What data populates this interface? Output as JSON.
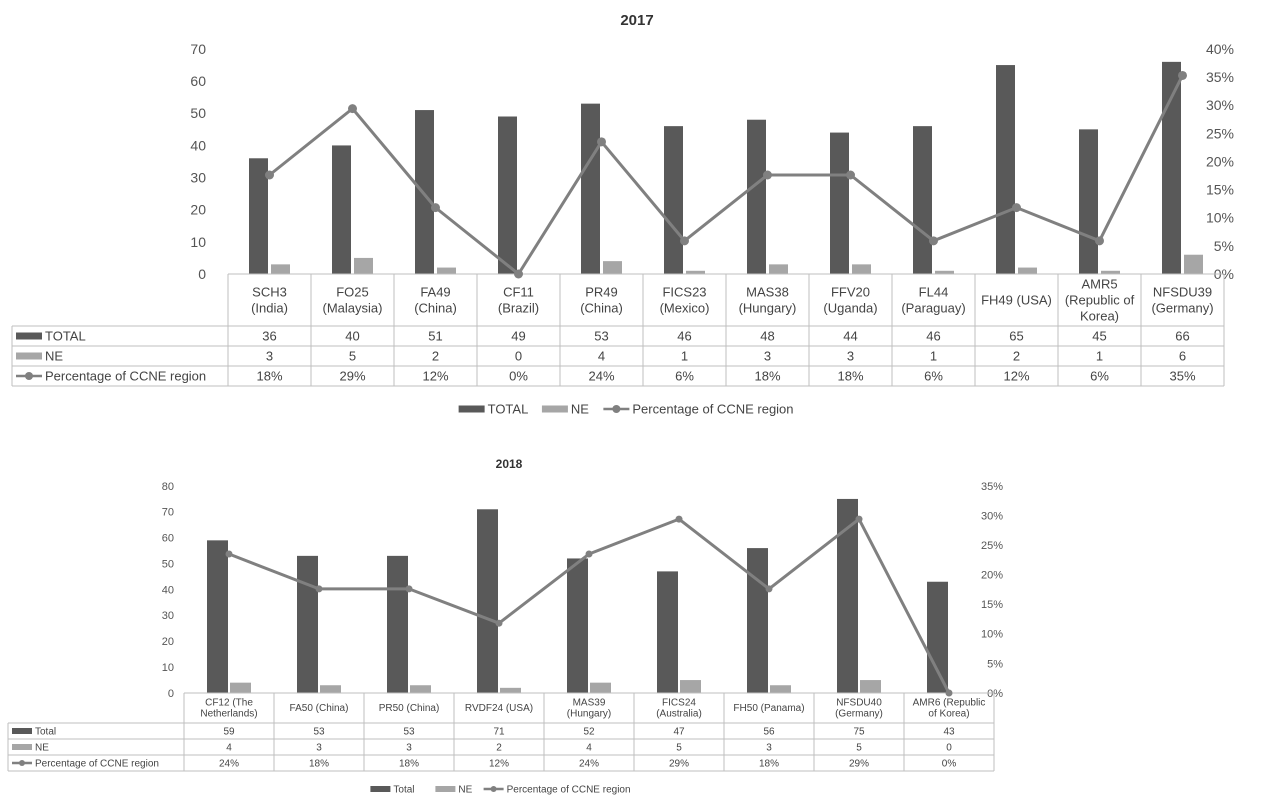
{
  "chart_data": [
    {
      "type": "bar",
      "title": "2017",
      "categories": [
        [
          "SCH3",
          "(India)"
        ],
        [
          "FO25",
          "(Malaysia)"
        ],
        [
          "FA49",
          "(China)"
        ],
        [
          "CF11",
          "(Brazil)"
        ],
        [
          "PR49",
          "(China)"
        ],
        [
          "FICS23",
          "(Mexico)"
        ],
        [
          "MAS38",
          "(Hungary)"
        ],
        [
          "FFV20",
          "(Uganda)"
        ],
        [
          "FL44",
          "(Paraguay)"
        ],
        [
          "FH49 (USA)"
        ],
        [
          "AMR5",
          "(Republic of",
          "Korea)"
        ],
        [
          "NFSDU39",
          "(Germany)"
        ]
      ],
      "series": [
        {
          "name": "TOTAL",
          "kind": "bar",
          "axis": "left",
          "color": "#595959",
          "values": [
            36,
            40,
            51,
            49,
            53,
            46,
            48,
            44,
            46,
            65,
            45,
            66
          ]
        },
        {
          "name": "NE",
          "kind": "bar",
          "axis": "left",
          "color": "#a6a6a6",
          "values": [
            3,
            5,
            2,
            0,
            4,
            1,
            3,
            3,
            1,
            2,
            1,
            6
          ]
        },
        {
          "name": "Percentage of CCNE region",
          "kind": "line",
          "axis": "right",
          "color": "#808080",
          "values": [
            17.6,
            29.4,
            11.8,
            0,
            23.5,
            5.9,
            17.6,
            17.6,
            5.9,
            11.8,
            5.9,
            35.3
          ],
          "labels": [
            "18%",
            "29%",
            "12%",
            "0%",
            "24%",
            "6%",
            "18%",
            "18%",
            "6%",
            "12%",
            "6%",
            "35%"
          ]
        }
      ],
      "ylim": [
        0,
        70
      ],
      "yticks": [
        "0",
        "10",
        "20",
        "30",
        "40",
        "50",
        "60",
        "70"
      ],
      "y2lim": [
        0,
        40
      ],
      "y2ticks": [
        "0%",
        "5%",
        "10%",
        "15%",
        "20%",
        "25%",
        "30%",
        "35%",
        "40%"
      ],
      "legend": [
        {
          "name": "TOTAL",
          "kind": "bar",
          "color": "#595959"
        },
        {
          "name": "NE",
          "kind": "bar",
          "color": "#a6a6a6"
        },
        {
          "name": "Percentage of CCNE region",
          "kind": "line",
          "color": "#808080"
        }
      ],
      "legend_position": "bottom",
      "grid": false,
      "data_table": true
    },
    {
      "type": "bar",
      "title": "2018",
      "categories": [
        [
          "CF12 (The",
          "Netherlands)"
        ],
        [
          "FA50 (China)"
        ],
        [
          "PR50 (China)"
        ],
        [
          "RVDF24 (USA)"
        ],
        [
          "MAS39",
          "(Hungary)"
        ],
        [
          "FICS24",
          "(Australia)"
        ],
        [
          "FH50 (Panama)"
        ],
        [
          "NFSDU40",
          "(Germany)"
        ],
        [
          "AMR6 (Republic",
          "of Korea)"
        ]
      ],
      "series": [
        {
          "name": "Total",
          "kind": "bar",
          "axis": "left",
          "color": "#595959",
          "values": [
            59,
            53,
            53,
            71,
            52,
            47,
            56,
            75,
            43
          ]
        },
        {
          "name": "NE",
          "kind": "bar",
          "axis": "left",
          "color": "#a6a6a6",
          "values": [
            4,
            3,
            3,
            2,
            4,
            5,
            3,
            5,
            0
          ]
        },
        {
          "name": "Percentage of CCNE region",
          "kind": "line",
          "axis": "right",
          "color": "#808080",
          "values": [
            23.5,
            17.6,
            17.6,
            11.8,
            23.5,
            29.4,
            17.6,
            29.4,
            0
          ],
          "labels": [
            "24%",
            "18%",
            "18%",
            "12%",
            "24%",
            "29%",
            "18%",
            "29%",
            "0%"
          ]
        }
      ],
      "ylim": [
        0,
        80
      ],
      "yticks": [
        "0",
        "10",
        "20",
        "30",
        "40",
        "50",
        "60",
        "70",
        "80"
      ],
      "y2lim": [
        0,
        35
      ],
      "y2ticks": [
        "0%",
        "5%",
        "10%",
        "15%",
        "20%",
        "25%",
        "30%",
        "35%"
      ],
      "legend": [
        {
          "name": "Total",
          "kind": "bar",
          "color": "#595959"
        },
        {
          "name": "NE",
          "kind": "bar",
          "color": "#a6a6a6"
        },
        {
          "name": "Percentage of CCNE region",
          "kind": "line",
          "color": "#808080"
        }
      ],
      "legend_position": "bottom",
      "grid": false,
      "data_table": true
    }
  ]
}
